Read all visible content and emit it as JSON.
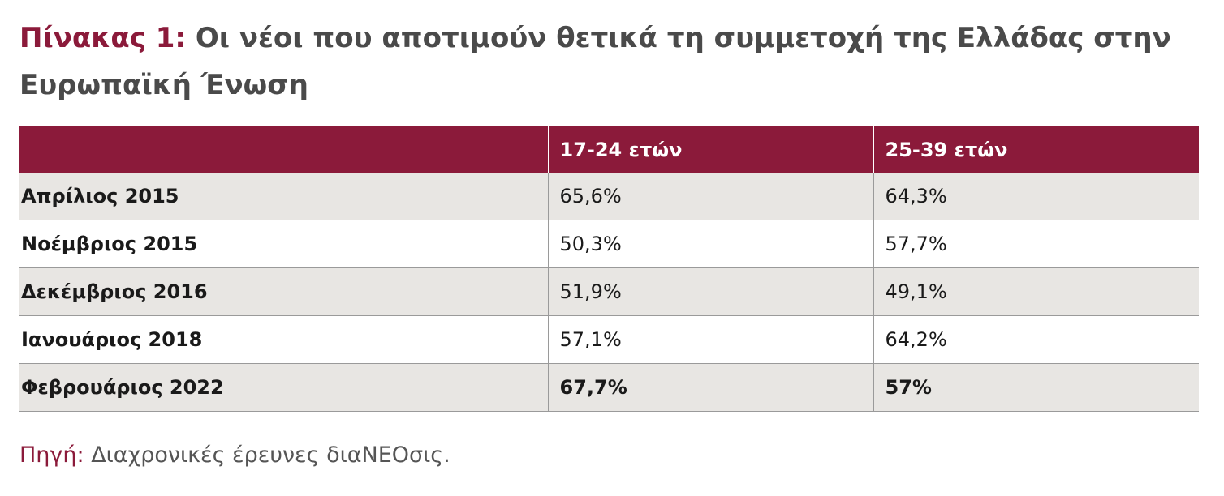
{
  "title": {
    "prefix": "Πίνακας 1:",
    "text": "Οι νέοι που αποτιμούν θετικά τη συμμετοχή της Ελλάδας στην Ευρωπαϊκή Ένωση"
  },
  "table": {
    "headers": [
      "",
      "17-24 ετών",
      "25-39 ετών"
    ],
    "rows": [
      {
        "label": "Απρίλιος 2015",
        "v1": "65,6%",
        "v2": "64,3%"
      },
      {
        "label": "Νοέμβριος 2015",
        "v1": "50,3%",
        "v2": "57,7%"
      },
      {
        "label": "Δεκέμβριος 2016",
        "v1": "51,9%",
        "v2": "49,1%"
      },
      {
        "label": "Ιανουάριος 2018",
        "v1": "57,1%",
        "v2": "64,2%"
      },
      {
        "label": "Φεβρουάριος 2022",
        "v1": "67,7%",
        "v2": "57%"
      }
    ]
  },
  "source": {
    "label": "Πηγή:",
    "text": "Διαχρονικές έρευνες διαNEOσις."
  },
  "colors": {
    "accent": "#8b1a3a",
    "row_shade": "#e8e6e3",
    "title_text": "#4a4a4a"
  }
}
